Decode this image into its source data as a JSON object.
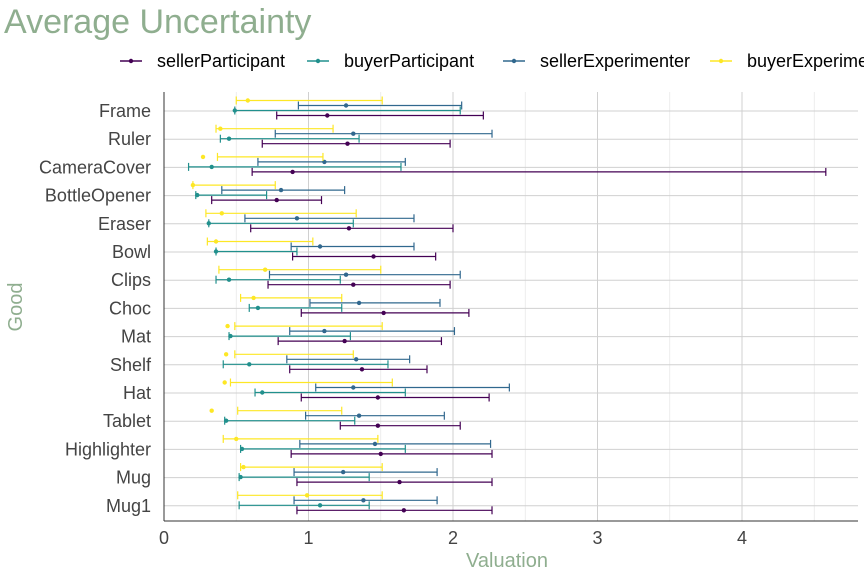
{
  "chart_data": {
    "type": "errorbar",
    "title": "Average Uncertainty",
    "xlabel": "Valuation",
    "ylabel": "Good",
    "xlim": [
      -0.05,
      4.8
    ],
    "xticks": [
      "0",
      "1",
      "2",
      "3",
      "4"
    ],
    "grid": true,
    "legend_position": "top",
    "categories": [
      "Frame",
      "Ruler",
      "CameraCover",
      "BottleOpener",
      "Eraser",
      "Bowl",
      "Clips",
      "Choc",
      "Mat",
      "Shelf",
      "Hat",
      "Tablet",
      "Highlighter",
      "Mug",
      "Mug1"
    ],
    "series": [
      {
        "name": "sellerParticipant",
        "color": "#440154",
        "points": [
          {
            "good": "Frame",
            "mean": 1.13,
            "low": 0.78,
            "high": 2.21
          },
          {
            "good": "Ruler",
            "mean": 1.27,
            "low": 0.68,
            "high": 1.98
          },
          {
            "good": "CameraCover",
            "mean": 0.89,
            "low": 0.61,
            "high": 4.58
          },
          {
            "good": "BottleOpener",
            "mean": 0.78,
            "low": 0.33,
            "high": 1.09
          },
          {
            "good": "Eraser",
            "mean": 1.28,
            "low": 0.6,
            "high": 2.0
          },
          {
            "good": "Bowl",
            "mean": 1.45,
            "low": 0.89,
            "high": 1.88
          },
          {
            "good": "Clips",
            "mean": 1.31,
            "low": 0.72,
            "high": 1.98
          },
          {
            "good": "Choc",
            "mean": 1.52,
            "low": 0.95,
            "high": 2.11
          },
          {
            "good": "Mat",
            "mean": 1.25,
            "low": 0.79,
            "high": 1.92
          },
          {
            "good": "Shelf",
            "mean": 1.37,
            "low": 0.87,
            "high": 1.82
          },
          {
            "good": "Hat",
            "mean": 1.48,
            "low": 0.95,
            "high": 2.25
          },
          {
            "good": "Tablet",
            "mean": 1.48,
            "low": 1.22,
            "high": 2.05
          },
          {
            "good": "Highlighter",
            "mean": 1.5,
            "low": 0.88,
            "high": 2.27
          },
          {
            "good": "Mug",
            "mean": 1.63,
            "low": 0.92,
            "high": 2.27
          },
          {
            "good": "Mug1",
            "mean": 1.66,
            "low": 0.92,
            "high": 2.27
          }
        ]
      },
      {
        "name": "buyerParticipant",
        "color": "#21908d",
        "points": [
          {
            "good": "Frame",
            "mean": 0.49,
            "low": 0.49,
            "high": 2.05
          },
          {
            "good": "Ruler",
            "mean": 0.45,
            "low": 0.39,
            "high": 1.35
          },
          {
            "good": "CameraCover",
            "mean": 0.33,
            "low": 0.17,
            "high": 1.64
          },
          {
            "good": "BottleOpener",
            "mean": 0.23,
            "low": 0.22,
            "high": 0.71
          },
          {
            "good": "Eraser",
            "mean": 0.31,
            "low": 0.31,
            "high": 1.31
          },
          {
            "good": "Bowl",
            "mean": 0.36,
            "low": 0.36,
            "high": 0.92
          },
          {
            "good": "Clips",
            "mean": 0.45,
            "low": 0.36,
            "high": 1.22
          },
          {
            "good": "Choc",
            "mean": 0.65,
            "low": 0.59,
            "high": 1.23
          },
          {
            "good": "Mat",
            "mean": 0.46,
            "low": 0.45,
            "high": 1.29
          },
          {
            "good": "Shelf",
            "mean": 0.59,
            "low": 0.41,
            "high": 1.55
          },
          {
            "good": "Hat",
            "mean": 0.68,
            "low": 0.63,
            "high": 1.67
          },
          {
            "good": "Tablet",
            "mean": 0.43,
            "low": 0.42,
            "high": 1.32
          },
          {
            "good": "Highlighter",
            "mean": 0.54,
            "low": 0.53,
            "high": 1.67
          },
          {
            "good": "Mug",
            "mean": 0.53,
            "low": 0.52,
            "high": 1.42
          },
          {
            "good": "Mug1",
            "mean": 1.08,
            "low": 0.52,
            "high": 1.42
          }
        ]
      },
      {
        "name": "sellerExperimenter",
        "color": "#31688e",
        "points": [
          {
            "good": "Frame",
            "mean": 1.26,
            "low": 0.93,
            "high": 2.06
          },
          {
            "good": "Ruler",
            "mean": 1.31,
            "low": 0.77,
            "high": 2.27
          },
          {
            "good": "CameraCover",
            "mean": 1.11,
            "low": 0.65,
            "high": 1.67
          },
          {
            "good": "BottleOpener",
            "mean": 0.81,
            "low": 0.4,
            "high": 1.25
          },
          {
            "good": "Eraser",
            "mean": 0.92,
            "low": 0.56,
            "high": 1.73
          },
          {
            "good": "Bowl",
            "mean": 1.08,
            "low": 0.88,
            "high": 1.73
          },
          {
            "good": "Clips",
            "mean": 1.26,
            "low": 0.73,
            "high": 2.05
          },
          {
            "good": "Choc",
            "mean": 1.35,
            "low": 1.01,
            "high": 1.91
          },
          {
            "good": "Mat",
            "mean": 1.11,
            "low": 0.87,
            "high": 2.01
          },
          {
            "good": "Shelf",
            "mean": 1.33,
            "low": 0.85,
            "high": 1.7
          },
          {
            "good": "Hat",
            "mean": 1.31,
            "low": 1.05,
            "high": 2.39
          },
          {
            "good": "Tablet",
            "mean": 1.35,
            "low": 0.98,
            "high": 1.94
          },
          {
            "good": "Highlighter",
            "mean": 1.46,
            "low": 0.94,
            "high": 2.26
          },
          {
            "good": "Mug",
            "mean": 1.24,
            "low": 0.9,
            "high": 1.89
          },
          {
            "good": "Mug1",
            "mean": 1.38,
            "low": 0.9,
            "high": 1.89
          }
        ]
      },
      {
        "name": "buyerExperimenter",
        "color": "#fde725",
        "points": [
          {
            "good": "Frame",
            "mean": 0.58,
            "low": 0.5,
            "high": 1.51
          },
          {
            "good": "Ruler",
            "mean": 0.39,
            "low": 0.36,
            "high": 1.17
          },
          {
            "good": "CameraCover",
            "mean": 0.27,
            "low": 0.37,
            "high": 1.1
          },
          {
            "good": "BottleOpener",
            "mean": 0.2,
            "low": 0.2,
            "high": 0.77
          },
          {
            "good": "Eraser",
            "mean": 0.4,
            "low": 0.29,
            "high": 1.33
          },
          {
            "good": "Bowl",
            "mean": 0.36,
            "low": 0.3,
            "high": 1.03
          },
          {
            "good": "Clips",
            "mean": 0.7,
            "low": 0.38,
            "high": 1.5
          },
          {
            "good": "Choc",
            "mean": 0.62,
            "low": 0.53,
            "high": 1.23
          },
          {
            "good": "Mat",
            "mean": 0.44,
            "low": 0.49,
            "high": 1.51
          },
          {
            "good": "Shelf",
            "mean": 0.43,
            "low": 0.49,
            "high": 1.31
          },
          {
            "good": "Hat",
            "mean": 0.42,
            "low": 0.46,
            "high": 1.58
          },
          {
            "good": "Tablet",
            "mean": 0.33,
            "low": 0.51,
            "high": 1.23
          },
          {
            "good": "Highlighter",
            "mean": 0.5,
            "low": 0.41,
            "high": 1.48
          },
          {
            "good": "Mug",
            "mean": 0.55,
            "low": 0.53,
            "high": 1.51
          },
          {
            "good": "Mug1",
            "mean": 0.99,
            "low": 0.51,
            "high": 1.51
          }
        ]
      }
    ]
  }
}
